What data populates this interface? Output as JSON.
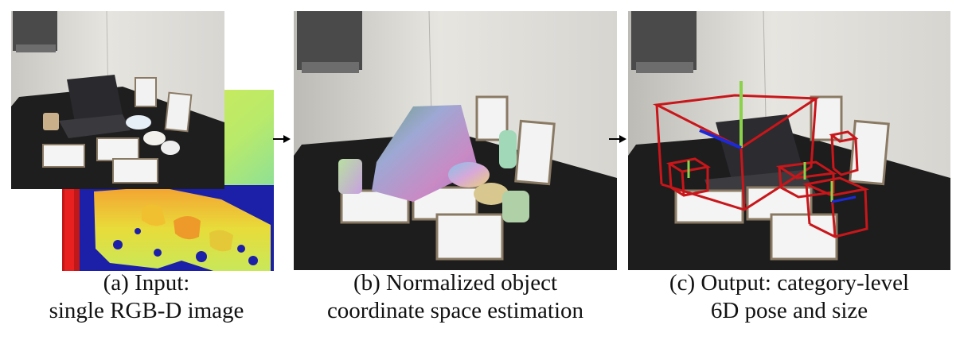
{
  "figure": {
    "panel_a": {
      "caption_line1": "(a) Input:",
      "caption_line2": "single RGB-D image"
    },
    "panel_b": {
      "caption_line1": "(b) Normalized object",
      "caption_line2": "coordinate space estimation"
    },
    "panel_c": {
      "caption_line1": "(c) Output: category-level",
      "caption_line2": "6D pose and size"
    }
  }
}
